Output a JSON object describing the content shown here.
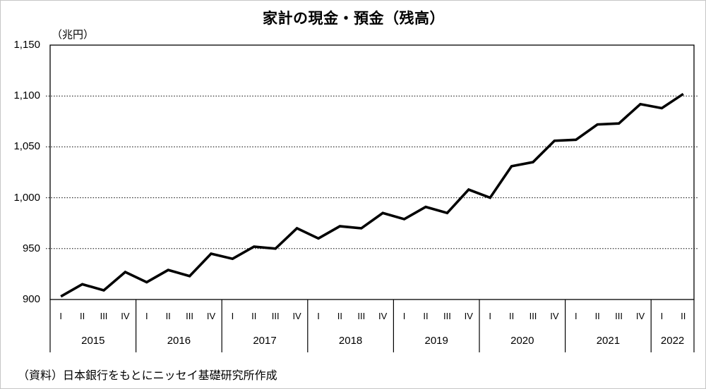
{
  "title": "家計の現金・預金（残高）",
  "unit_label": "（兆円）",
  "source": "（資料）日本銀行をもとにニッセイ基礎研究所作成",
  "chart_data": {
    "type": "line",
    "title": "家計の現金・預金（残高）",
    "ylabel": "（兆円）",
    "xlabel": "",
    "ylim": [
      900,
      1150
    ],
    "y_tick_interval": 50,
    "y_tick_labels": [
      "900",
      "950",
      "1,000",
      "1,050",
      "1,100",
      "1,150"
    ],
    "grid": "horizontal-dotted",
    "legend": "none",
    "line_color": "#000000",
    "years": [
      {
        "label": "2015",
        "quarters": [
          "I",
          "II",
          "III",
          "IV"
        ]
      },
      {
        "label": "2016",
        "quarters": [
          "I",
          "II",
          "III",
          "IV"
        ]
      },
      {
        "label": "2017",
        "quarters": [
          "I",
          "II",
          "III",
          "IV"
        ]
      },
      {
        "label": "2018",
        "quarters": [
          "I",
          "II",
          "III",
          "IV"
        ]
      },
      {
        "label": "2019",
        "quarters": [
          "I",
          "II",
          "III",
          "IV"
        ]
      },
      {
        "label": "2020",
        "quarters": [
          "I",
          "II",
          "III",
          "IV"
        ]
      },
      {
        "label": "2021",
        "quarters": [
          "I",
          "II",
          "III",
          "IV"
        ]
      },
      {
        "label": "2022",
        "quarters": [
          "I",
          "II"
        ]
      }
    ],
    "series": [
      {
        "name": "家計の現金・預金残高",
        "values": [
          903,
          915,
          909,
          927,
          917,
          929,
          923,
          945,
          940,
          952,
          950,
          970,
          960,
          972,
          970,
          985,
          979,
          991,
          985,
          1008,
          1000,
          1031,
          1035,
          1056,
          1057,
          1072,
          1073,
          1092,
          1088,
          1102
        ]
      }
    ]
  }
}
